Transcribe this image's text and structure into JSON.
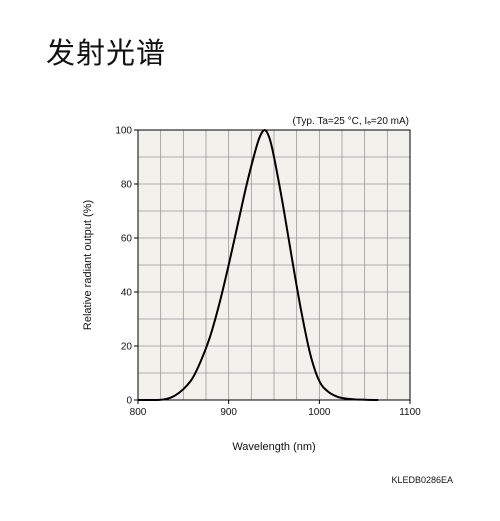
{
  "page": {
    "title": "发射光谱"
  },
  "chart_data": {
    "type": "line",
    "title": "",
    "condition_note": "(Typ. Ta=25 °C, Iₑ=20 mA)",
    "xlabel": "Wavelength (nm)",
    "ylabel": "Relative radiant output (%)",
    "xlim": [
      800,
      1100
    ],
    "ylim": [
      0,
      100
    ],
    "x_ticks": [
      "800",
      "900",
      "1000",
      "1100"
    ],
    "y_ticks": [
      "0",
      "20",
      "40",
      "60",
      "80",
      "100"
    ],
    "grid": true,
    "grid_x_step": 25,
    "grid_y_step": 10,
    "background": "#f3f1ec",
    "line_color": "#000000",
    "series": [
      {
        "x": [
          800,
          820,
          830,
          840,
          850,
          860,
          870,
          880,
          890,
          900,
          910,
          920,
          930,
          935,
          940,
          945,
          950,
          960,
          970,
          980,
          990,
          1000,
          1010,
          1020,
          1030,
          1040,
          1050,
          1060,
          1065
        ],
        "values": [
          0,
          0,
          0.3,
          1.5,
          4,
          8,
          15,
          24,
          36,
          50,
          65,
          80,
          93,
          98,
          100,
          97,
          90,
          72,
          52,
          33,
          17,
          7,
          3,
          1.2,
          0.5,
          0.2,
          0.1,
          0,
          0
        ]
      }
    ],
    "figure_code": "KLEDB0286EA"
  }
}
